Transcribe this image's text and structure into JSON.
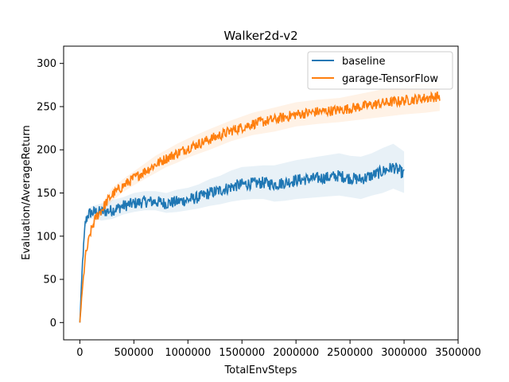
{
  "chart_data": {
    "type": "line",
    "title": "Walker2d-v2",
    "xlabel": "TotalEnvSteps",
    "ylabel": "Evaluation/AverageReturn",
    "xlim": [
      -150000,
      3500000
    ],
    "ylim": [
      -20,
      320
    ],
    "x_ticks": [
      0,
      500000,
      1000000,
      1500000,
      2000000,
      2500000,
      3000000,
      3500000
    ],
    "x_tick_labels": [
      "0",
      "500000",
      "1000000",
      "1500000",
      "2000000",
      "2500000",
      "3000000",
      "3500000"
    ],
    "y_ticks": [
      0,
      50,
      100,
      150,
      200,
      250,
      300
    ],
    "y_tick_labels": [
      "0",
      "50",
      "100",
      "150",
      "200",
      "250",
      "300"
    ],
    "grid": false,
    "legend_position": "top-right",
    "series": [
      {
        "name": "baseline",
        "color": "#1f77b4",
        "x": [
          0,
          25000,
          50000,
          75000,
          100000,
          150000,
          200000,
          300000,
          400000,
          500000,
          600000,
          700000,
          800000,
          900000,
          1000000,
          1100000,
          1200000,
          1300000,
          1400000,
          1500000,
          1600000,
          1700000,
          1800000,
          1900000,
          2000000,
          2100000,
          2200000,
          2300000,
          2400000,
          2500000,
          2600000,
          2700000,
          2800000,
          2900000,
          3000000
        ],
        "y": [
          0,
          70,
          115,
          125,
          127,
          128,
          128,
          130,
          135,
          138,
          140,
          140,
          138,
          140,
          142,
          145,
          150,
          153,
          157,
          160,
          161,
          162,
          160,
          162,
          165,
          166,
          167,
          168,
          170,
          167,
          166,
          170,
          175,
          180,
          172
        ],
        "band_low": [
          0,
          65,
          110,
          118,
          120,
          120,
          118,
          120,
          125,
          128,
          130,
          130,
          127,
          128,
          130,
          132,
          135,
          137,
          140,
          142,
          143,
          143,
          140,
          141,
          143,
          144,
          145,
          146,
          147,
          145,
          143,
          147,
          150,
          155,
          150
        ],
        "band_high": [
          0,
          75,
          120,
          132,
          134,
          136,
          138,
          142,
          145,
          150,
          152,
          152,
          150,
          154,
          156,
          160,
          166,
          170,
          176,
          180,
          181,
          182,
          182,
          185,
          188,
          190,
          192,
          194,
          196,
          193,
          192,
          196,
          202,
          207,
          198
        ]
      },
      {
        "name": "garage-TensorFlow",
        "color": "#ff7f0e",
        "x": [
          0,
          25000,
          50000,
          100000,
          150000,
          200000,
          250000,
          300000,
          400000,
          500000,
          600000,
          700000,
          800000,
          900000,
          1000000,
          1200000,
          1400000,
          1600000,
          1800000,
          2000000,
          2200000,
          2400000,
          2600000,
          2800000,
          3000000,
          3200000,
          3330000
        ],
        "y": [
          0,
          40,
          75,
          105,
          122,
          130,
          140,
          148,
          158,
          167,
          175,
          183,
          190,
          196,
          202,
          212,
          222,
          230,
          235,
          241,
          244,
          246,
          250,
          254,
          257,
          260,
          262
        ],
        "band_low": [
          0,
          38,
          72,
          100,
          117,
          125,
          134,
          141,
          151,
          159,
          166,
          173,
          180,
          185,
          191,
          200,
          210,
          217,
          221,
          227,
          230,
          232,
          235,
          238,
          241,
          243,
          245
        ],
        "band_high": [
          0,
          42,
          78,
          110,
          128,
          136,
          147,
          156,
          166,
          175,
          184,
          193,
          200,
          207,
          213,
          224,
          234,
          243,
          249,
          255,
          258,
          260,
          265,
          270,
          273,
          277,
          279
        ]
      }
    ]
  }
}
